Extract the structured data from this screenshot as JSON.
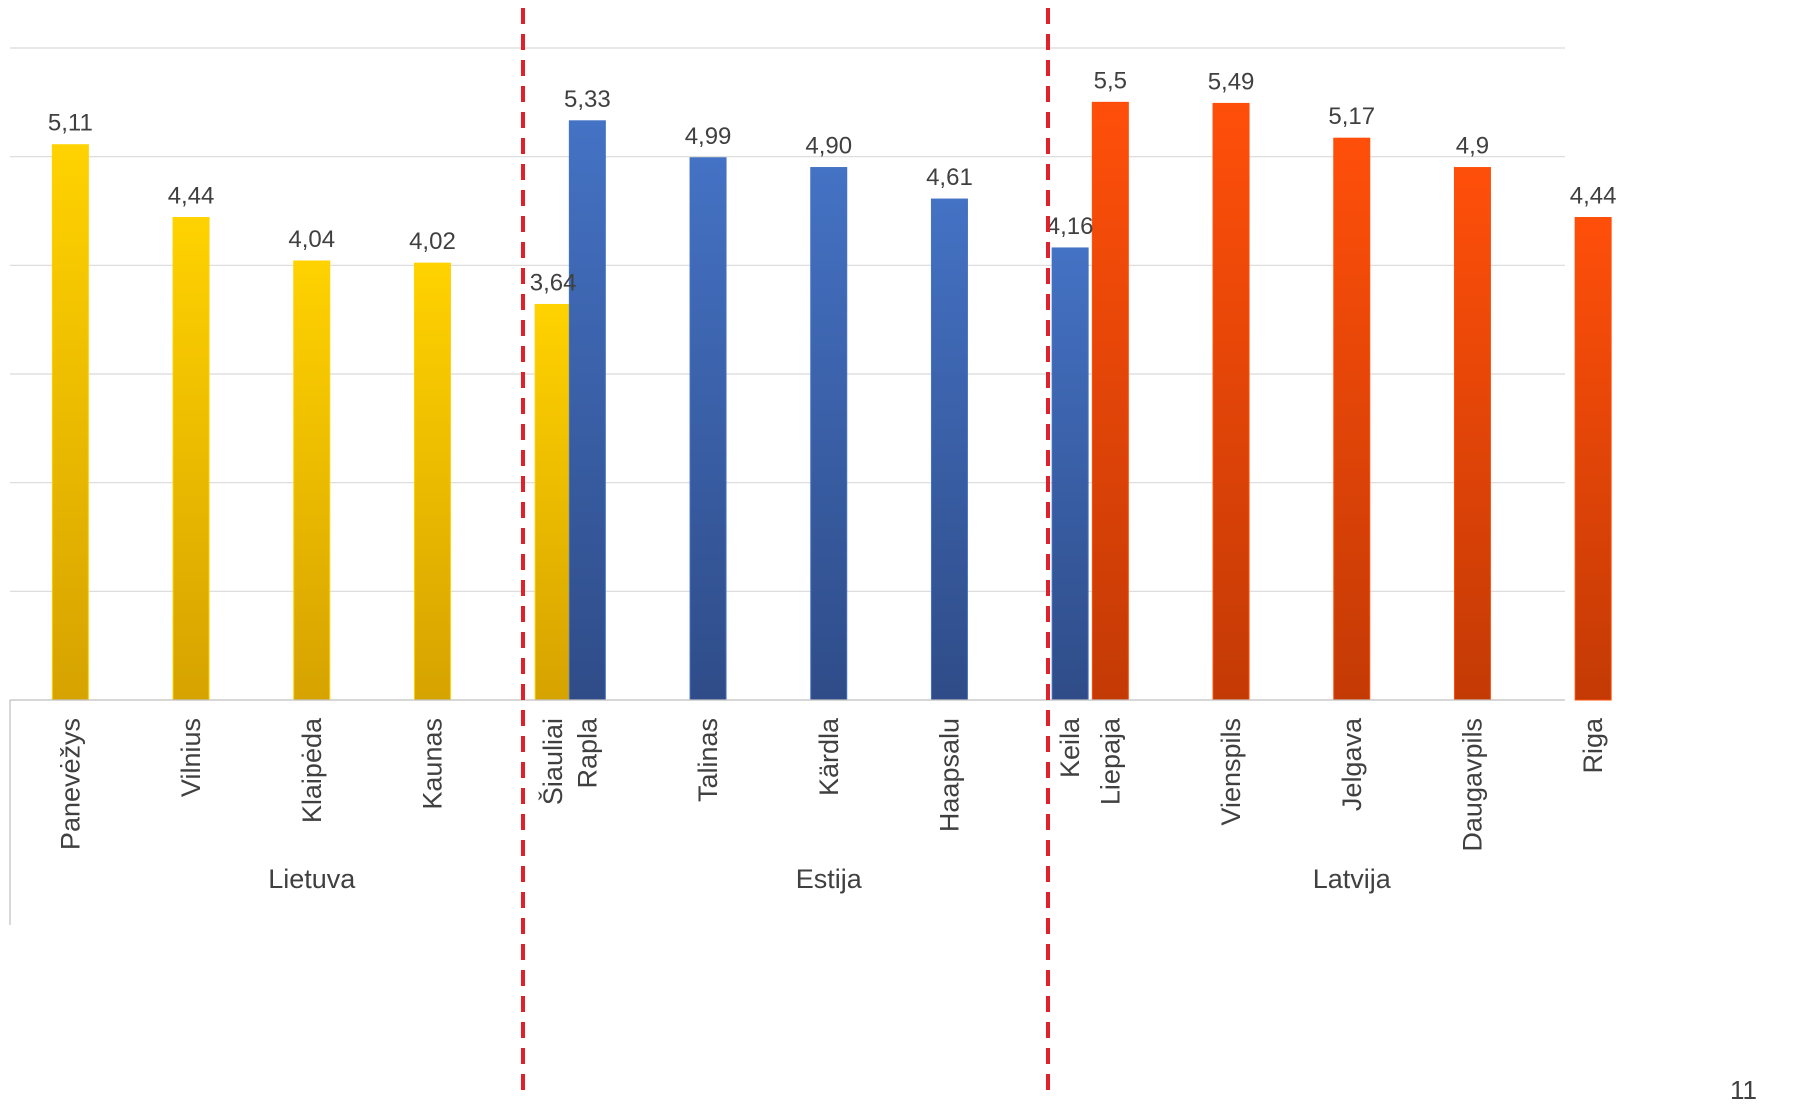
{
  "chart_data": {
    "type": "bar",
    "ylim": [
      0,
      6
    ],
    "grid": true,
    "groups": [
      {
        "name": "Lietuva",
        "color_top": "#FFD200",
        "color_bottom": "#D6A300",
        "categories": [
          "Panevėžys",
          "Vilnius",
          "Klaipėda",
          "Kaunas",
          "Šiauliai"
        ],
        "values": [
          5.11,
          4.44,
          4.04,
          4.02,
          3.64
        ],
        "value_labels": [
          "5,11",
          "4,44",
          "4,04",
          "4,02",
          "3,64"
        ]
      },
      {
        "name": "Estija",
        "color_top": "#4472C4",
        "color_bottom": "#2F4C88",
        "categories": [
          "Rapla",
          "Talinas",
          "Kärdla",
          "Haapsalu",
          "Keila"
        ],
        "values": [
          5.33,
          4.99,
          4.9,
          4.61,
          4.16
        ],
        "value_labels": [
          "5,33",
          "4,99",
          "4,90",
          "4,61",
          "4,16"
        ]
      },
      {
        "name": "Latvija",
        "color_top": "#FF4F0A",
        "color_bottom": "#C43A05",
        "categories": [
          "Liepaja",
          "Vienspils",
          "Jelgava",
          "Daugavpils",
          "Riga"
        ],
        "values": [
          5.5,
          5.49,
          5.17,
          4.9,
          4.44
        ],
        "value_labels": [
          "5,5",
          "5,49",
          "5,17",
          "4,9",
          "4,44"
        ]
      }
    ],
    "separator_color": "#E0202A",
    "gridline_color": "#D9D9D9",
    "axis_color": "#BFBFBF"
  },
  "page_number": "11"
}
